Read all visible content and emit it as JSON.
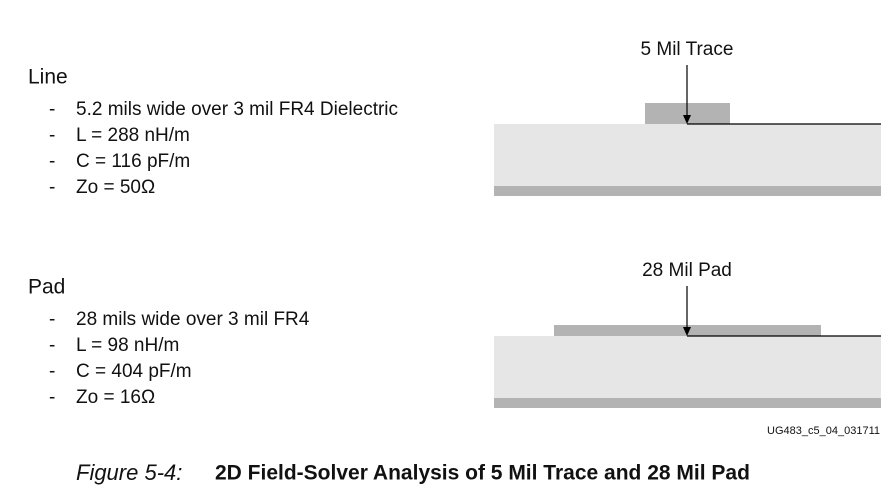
{
  "sections": [
    {
      "title": "Line",
      "bullet_marker": "-",
      "items": [
        "5.2 mils wide over 3 mil FR4 Dielectric",
        "L = 288 nH/m",
        "C = 116 pF/m",
        "Zo = 50Ω"
      ],
      "diagram_label": "5 Mil Trace"
    },
    {
      "title": "Pad",
      "bullet_marker": "-",
      "items": [
        "28 mils wide over 3 mil FR4",
        "L = 98 nH/m",
        "C = 404 pF/m",
        "Zo = 16Ω"
      ],
      "diagram_label": "28 Mil Pad"
    }
  ],
  "figure": {
    "id": "UG483_c5_04_031711",
    "number": "Figure 5-4:",
    "title": "2D Field-Solver Analysis of 5 Mil Trace and 28 Mil Pad"
  }
}
